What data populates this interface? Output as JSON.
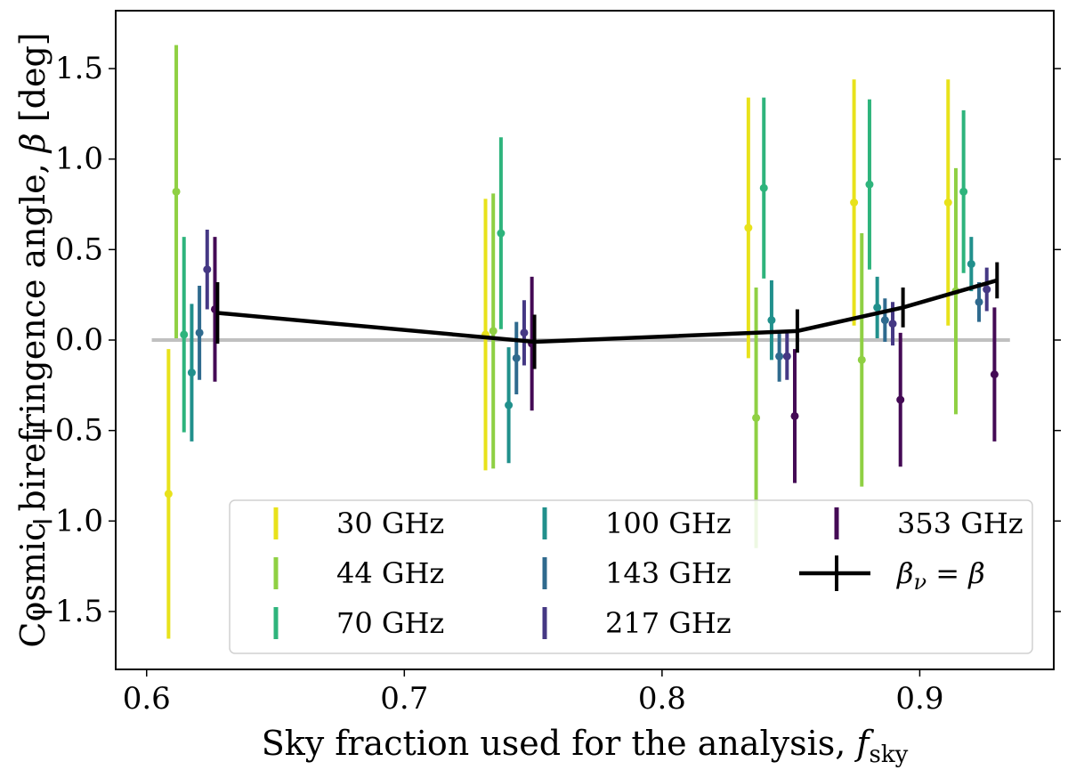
{
  "chart_data": {
    "type": "errorbar",
    "title": "",
    "xlabel": "Sky fraction used for the analysis, ",
    "xlabel_math": "f",
    "xlabel_sub": "sky",
    "ylabel": "Cosmic birefringence angle, ",
    "ylabel_math": "β",
    "ylabel_unit": " [deg]",
    "xlim": [
      0.588,
      0.952
    ],
    "ylim": [
      -1.82,
      1.82
    ],
    "xticks": [
      0.6,
      0.7,
      0.8,
      0.9
    ],
    "xtick_labels": [
      "0.6",
      "0.7",
      "0.8",
      "0.9"
    ],
    "yticks": [
      -1.5,
      -1.0,
      -0.5,
      0.0,
      0.5,
      1.0,
      1.5
    ],
    "ytick_labels": [
      "−1.5",
      "−1.0",
      "−0.5",
      "0.0",
      "0.5",
      "1.0",
      "1.5"
    ],
    "reference_line": {
      "y": 0.0,
      "x_range": [
        0.602,
        0.935
      ],
      "color": "#c0c0c0"
    },
    "fsky": [
      0.6275,
      0.7505,
      0.8525,
      0.8935,
      0.93
    ],
    "series": [
      {
        "name": "30 GHz",
        "color": "#e8e21b",
        "x_offset": -0.019,
        "values": [
          -0.85,
          0.03,
          0.62,
          0.76,
          0.76
        ],
        "errors": [
          0.8,
          0.75,
          0.72,
          0.68,
          0.68
        ]
      },
      {
        "name": "44 GHz",
        "color": "#8fd043",
        "x_offset": -0.016,
        "values": [
          0.82,
          0.05,
          -0.43,
          -0.11,
          0.27
        ],
        "errors": [
          0.81,
          0.76,
          0.72,
          0.7,
          0.68
        ]
      },
      {
        "name": "70 GHz",
        "color": "#2eb47c",
        "x_offset": -0.013,
        "values": [
          0.03,
          0.59,
          0.84,
          0.86,
          0.82
        ],
        "errors": [
          0.54,
          0.53,
          0.5,
          0.47,
          0.45
        ]
      },
      {
        "name": "100 GHz",
        "color": "#21908c",
        "x_offset": -0.01,
        "values": [
          -0.18,
          -0.36,
          0.11,
          0.18,
          0.42
        ],
        "errors": [
          0.38,
          0.32,
          0.22,
          0.17,
          0.15
        ]
      },
      {
        "name": "143 GHz",
        "color": "#2f6a8e",
        "x_offset": -0.007,
        "values": [
          0.04,
          -0.1,
          -0.09,
          0.11,
          0.21
        ],
        "errors": [
          0.26,
          0.2,
          0.14,
          0.12,
          0.11
        ]
      },
      {
        "name": "217 GHz",
        "color": "#453884",
        "x_offset": -0.004,
        "values": [
          0.39,
          0.04,
          -0.09,
          0.09,
          0.28
        ],
        "errors": [
          0.22,
          0.18,
          0.13,
          0.12,
          0.12
        ]
      },
      {
        "name": "353 GHz",
        "color": "#440a55",
        "x_offset": -0.001,
        "values": [
          0.17,
          -0.02,
          -0.42,
          -0.33,
          -0.19
        ],
        "errors": [
          0.4,
          0.37,
          0.37,
          0.37,
          0.37
        ]
      }
    ],
    "combined": {
      "name": "β_ν = β",
      "label_main": "β",
      "label_sub": "ν",
      "label_rest": " = β",
      "color": "#000000",
      "values": [
        0.15,
        -0.01,
        0.05,
        0.18,
        0.33
      ],
      "errors": [
        0.17,
        0.15,
        0.12,
        0.11,
        0.1
      ]
    },
    "legend": {
      "position": "bottom-right",
      "columns": 3
    }
  }
}
